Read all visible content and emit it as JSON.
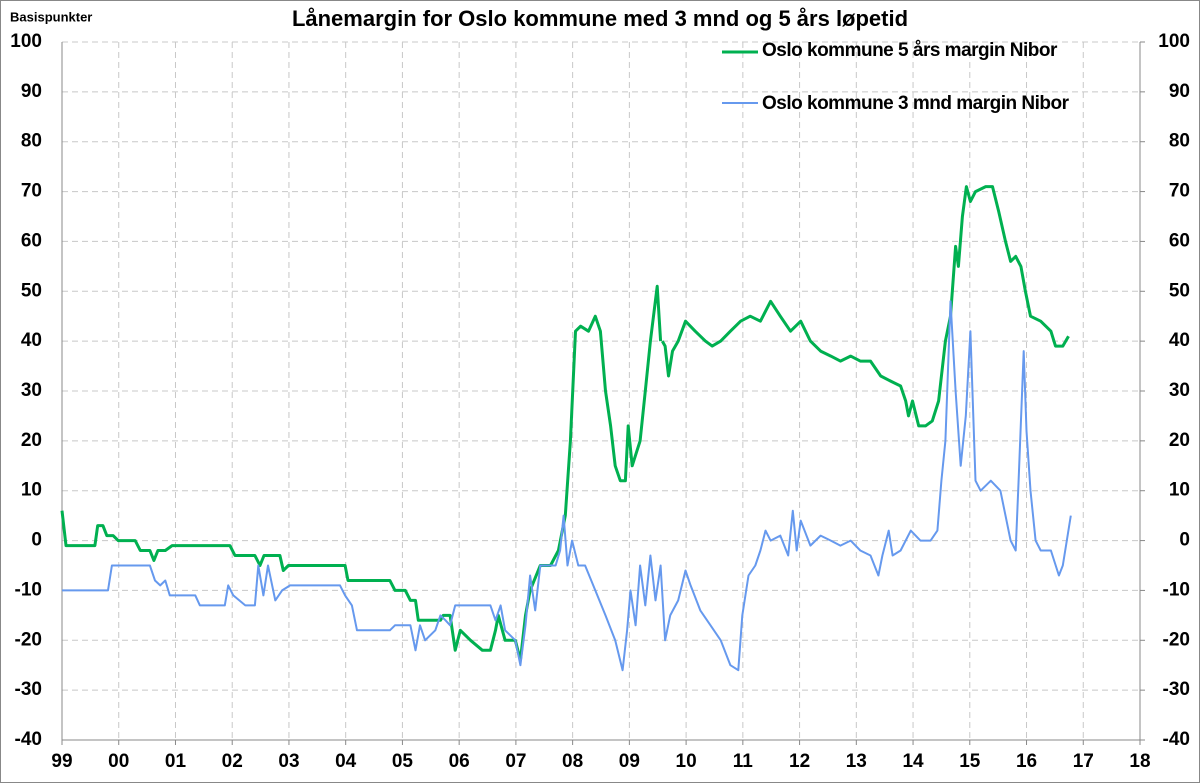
{
  "chart_data": {
    "type": "line",
    "title": "Lånemargin for Oslo kommune med 3 mnd og 5 års løpetid",
    "y_label": "Basispunkter",
    "xlim": [
      1999,
      2018
    ],
    "xticks": [
      {
        "value": 1999,
        "label": "99"
      },
      {
        "value": 2000,
        "label": "00"
      },
      {
        "value": 2001,
        "label": "01"
      },
      {
        "value": 2002,
        "label": "02"
      },
      {
        "value": 2003,
        "label": "03"
      },
      {
        "value": 2004,
        "label": "04"
      },
      {
        "value": 2005,
        "label": "05"
      },
      {
        "value": 2006,
        "label": "06"
      },
      {
        "value": 2007,
        "label": "07"
      },
      {
        "value": 2008,
        "label": "08"
      },
      {
        "value": 2009,
        "label": "09"
      },
      {
        "value": 2010,
        "label": "10"
      },
      {
        "value": 2011,
        "label": "11"
      },
      {
        "value": 2012,
        "label": "12"
      },
      {
        "value": 2013,
        "label": "13"
      },
      {
        "value": 2014,
        "label": "14"
      },
      {
        "value": 2015,
        "label": "15"
      },
      {
        "value": 2016,
        "label": "16"
      },
      {
        "value": 2017,
        "label": "17"
      },
      {
        "value": 2018,
        "label": "18"
      }
    ],
    "ylim": [
      -40,
      100
    ],
    "yticks": [
      -40,
      -30,
      -20,
      -10,
      0,
      10,
      20,
      30,
      40,
      50,
      60,
      70,
      80,
      90,
      100
    ],
    "y2lim": [
      -40,
      100
    ],
    "y2ticks": [
      -40,
      -30,
      -20,
      -10,
      0,
      10,
      20,
      30,
      40,
      50,
      60,
      70,
      80,
      90,
      100
    ],
    "grid": true,
    "series": [
      {
        "name": "Oslo kommune 5 års margin Nibor",
        "color": "#00b050",
        "x": [
          1999.0,
          1999.07,
          1999.58,
          1999.63,
          1999.72,
          1999.79,
          1999.9,
          1999.99,
          2000.29,
          2000.38,
          2000.55,
          2000.62,
          2000.69,
          2000.82,
          2000.94,
          2001.96,
          2002.05,
          2002.4,
          2002.49,
          2002.56,
          2002.84,
          2002.9,
          2002.99,
          2003.11,
          2003.99,
          2004.04,
          2004.78,
          2004.87,
          2005.05,
          2005.14,
          2005.23,
          2005.28,
          2005.67,
          2005.72,
          2005.84,
          2005.93,
          2006.02,
          2006.2,
          2006.41,
          2006.55,
          2006.64,
          2006.69,
          2006.81,
          2006.99,
          2007.08,
          2007.17,
          2007.25,
          2007.43,
          2007.61,
          2007.75,
          2007.87,
          2007.96,
          2008.05,
          2008.14,
          2008.28,
          2008.4,
          2008.49,
          2008.58,
          2008.67,
          2008.75,
          2008.84,
          2008.93,
          2008.98,
          2009.05,
          2009.19,
          2009.28,
          2009.37,
          2009.49,
          2009.55,
          2009.57,
          2009.58,
          2009.63,
          2009.69,
          2009.76,
          2009.86,
          2009.99,
          2010.16,
          2010.34,
          2010.46,
          2010.61,
          2010.78,
          2010.96,
          2011.13,
          2011.31,
          2011.49,
          2011.66,
          2011.84,
          2012.02,
          2012.19,
          2012.37,
          2012.55,
          2012.72,
          2012.9,
          2013.07,
          2013.25,
          2013.43,
          2013.6,
          2013.78,
          2013.87,
          2013.92,
          2013.99,
          2014.1,
          2014.22,
          2014.34,
          2014.45,
          2014.57,
          2014.66,
          2014.75,
          2014.8,
          2014.87,
          2014.94,
          2015.01,
          2015.1,
          2015.28,
          2015.4,
          2015.51,
          2015.63,
          2015.72,
          2015.81,
          2015.9,
          2015.98,
          2016.07,
          2016.25,
          2016.43,
          2016.51,
          2016.64,
          2016.74
        ],
        "values": [
          6,
          -1,
          -1,
          3,
          3,
          1,
          1,
          0,
          0,
          -2,
          -2,
          -4,
          -2,
          -2,
          -1,
          -1,
          -3,
          -3,
          -5,
          -3,
          -3,
          -6,
          -5,
          -5,
          -5,
          -8,
          -8,
          -10,
          -10,
          -12,
          -12,
          -16,
          -16,
          -15,
          -15,
          -22,
          -18,
          -20,
          -22,
          -22,
          -18,
          -15,
          -20,
          -20,
          -24,
          -15,
          -10,
          -5,
          -5,
          -2,
          5,
          20,
          42,
          43,
          42,
          45,
          42,
          30,
          23,
          15,
          12,
          12,
          23,
          15,
          20,
          30,
          40,
          51,
          40,
          null,
          40,
          39,
          33,
          38,
          40,
          44,
          42,
          40,
          39,
          40,
          42,
          44,
          45,
          44,
          48,
          45,
          42,
          44,
          40,
          38,
          37,
          36,
          37,
          36,
          36,
          33,
          32,
          31,
          28,
          25,
          28,
          23,
          23,
          24,
          28,
          40,
          45,
          59,
          55,
          65,
          71,
          68,
          70,
          71,
          71,
          66,
          60,
          56,
          57,
          55,
          50,
          45,
          44,
          42,
          39,
          39,
          41
        ]
      },
      {
        "name": "Oslo kommune 3 mnd margin Nibor",
        "color": "#6699ee",
        "x": [
          1999.0,
          1999.81,
          1999.88,
          2000.55,
          2000.64,
          2000.73,
          2000.82,
          2000.9,
          2001.35,
          2001.43,
          2001.87,
          2001.93,
          2002.02,
          2002.23,
          2002.4,
          2002.46,
          2002.55,
          2002.63,
          2002.76,
          2002.88,
          2003.02,
          2003.9,
          2003.99,
          2004.11,
          2004.2,
          2004.78,
          2004.87,
          2005.14,
          2005.23,
          2005.31,
          2005.4,
          2005.58,
          2005.67,
          2005.76,
          2005.84,
          2005.93,
          2006.55,
          2006.64,
          2006.73,
          2006.81,
          2006.99,
          2007.08,
          2007.17,
          2007.25,
          2007.34,
          2007.43,
          2007.57,
          2007.7,
          2007.78,
          2007.84,
          2007.91,
          2007.99,
          2008.1,
          2008.22,
          2008.4,
          2008.58,
          2008.75,
          2008.88,
          2008.96,
          2009.02,
          2009.11,
          2009.19,
          2009.28,
          2009.37,
          2009.46,
          2009.55,
          2009.63,
          2009.72,
          2009.86,
          2009.99,
          2010.08,
          2010.25,
          2010.43,
          2010.61,
          2010.78,
          2010.92,
          2010.99,
          2011.1,
          2011.22,
          2011.31,
          2011.4,
          2011.49,
          2011.66,
          2011.8,
          2011.88,
          2011.95,
          2012.02,
          2012.19,
          2012.37,
          2012.55,
          2012.72,
          2012.9,
          2013.07,
          2013.25,
          2013.39,
          2013.46,
          2013.57,
          2013.64,
          2013.78,
          2013.96,
          2014.13,
          2014.31,
          2014.43,
          2014.5,
          2014.57,
          2014.66,
          2014.75,
          2014.84,
          2014.93,
          2015.01,
          2015.1,
          2015.19,
          2015.37,
          2015.54,
          2015.63,
          2015.72,
          2015.81,
          2015.86,
          2015.95,
          2016.0,
          2016.07,
          2016.16,
          2016.25,
          2016.43,
          2016.57,
          2016.64,
          2016.71,
          2016.78
        ],
        "values": [
          -10,
          -10,
          -5,
          -5,
          -8,
          -9,
          -8,
          -11,
          -11,
          -13,
          -13,
          -9,
          -11,
          -13,
          -13,
          -5,
          -11,
          -5,
          -12,
          -10,
          -9,
          -9,
          -11,
          -13,
          -18,
          -18,
          -17,
          -17,
          -22,
          -17,
          -20,
          -18,
          -15,
          -16,
          -17,
          -13,
          -13,
          -16,
          -13,
          -18,
          -20,
          -25,
          -17,
          -7,
          -14,
          -5,
          -5,
          -5,
          -2,
          5,
          -5,
          0,
          -5,
          -5,
          -10,
          -15,
          -20,
          -26,
          -18,
          -10,
          -17,
          -5,
          -13,
          -3,
          -12,
          -5,
          -20,
          -15,
          -12,
          -6,
          -9,
          -14,
          -17,
          -20,
          -25,
          -26,
          -15,
          -7,
          -5,
          -2,
          2,
          0,
          1,
          -3,
          6,
          -2,
          4,
          -1,
          1,
          0,
          -1,
          0,
          -2,
          -3,
          -7,
          -3,
          2,
          -3,
          -2,
          2,
          0,
          0,
          2,
          12,
          20,
          48,
          30,
          15,
          25,
          42,
          12,
          10,
          12,
          10,
          5,
          0,
          -2,
          12,
          38,
          22,
          10,
          0,
          -2,
          -2,
          -7,
          -5,
          0,
          5
        ]
      }
    ]
  }
}
